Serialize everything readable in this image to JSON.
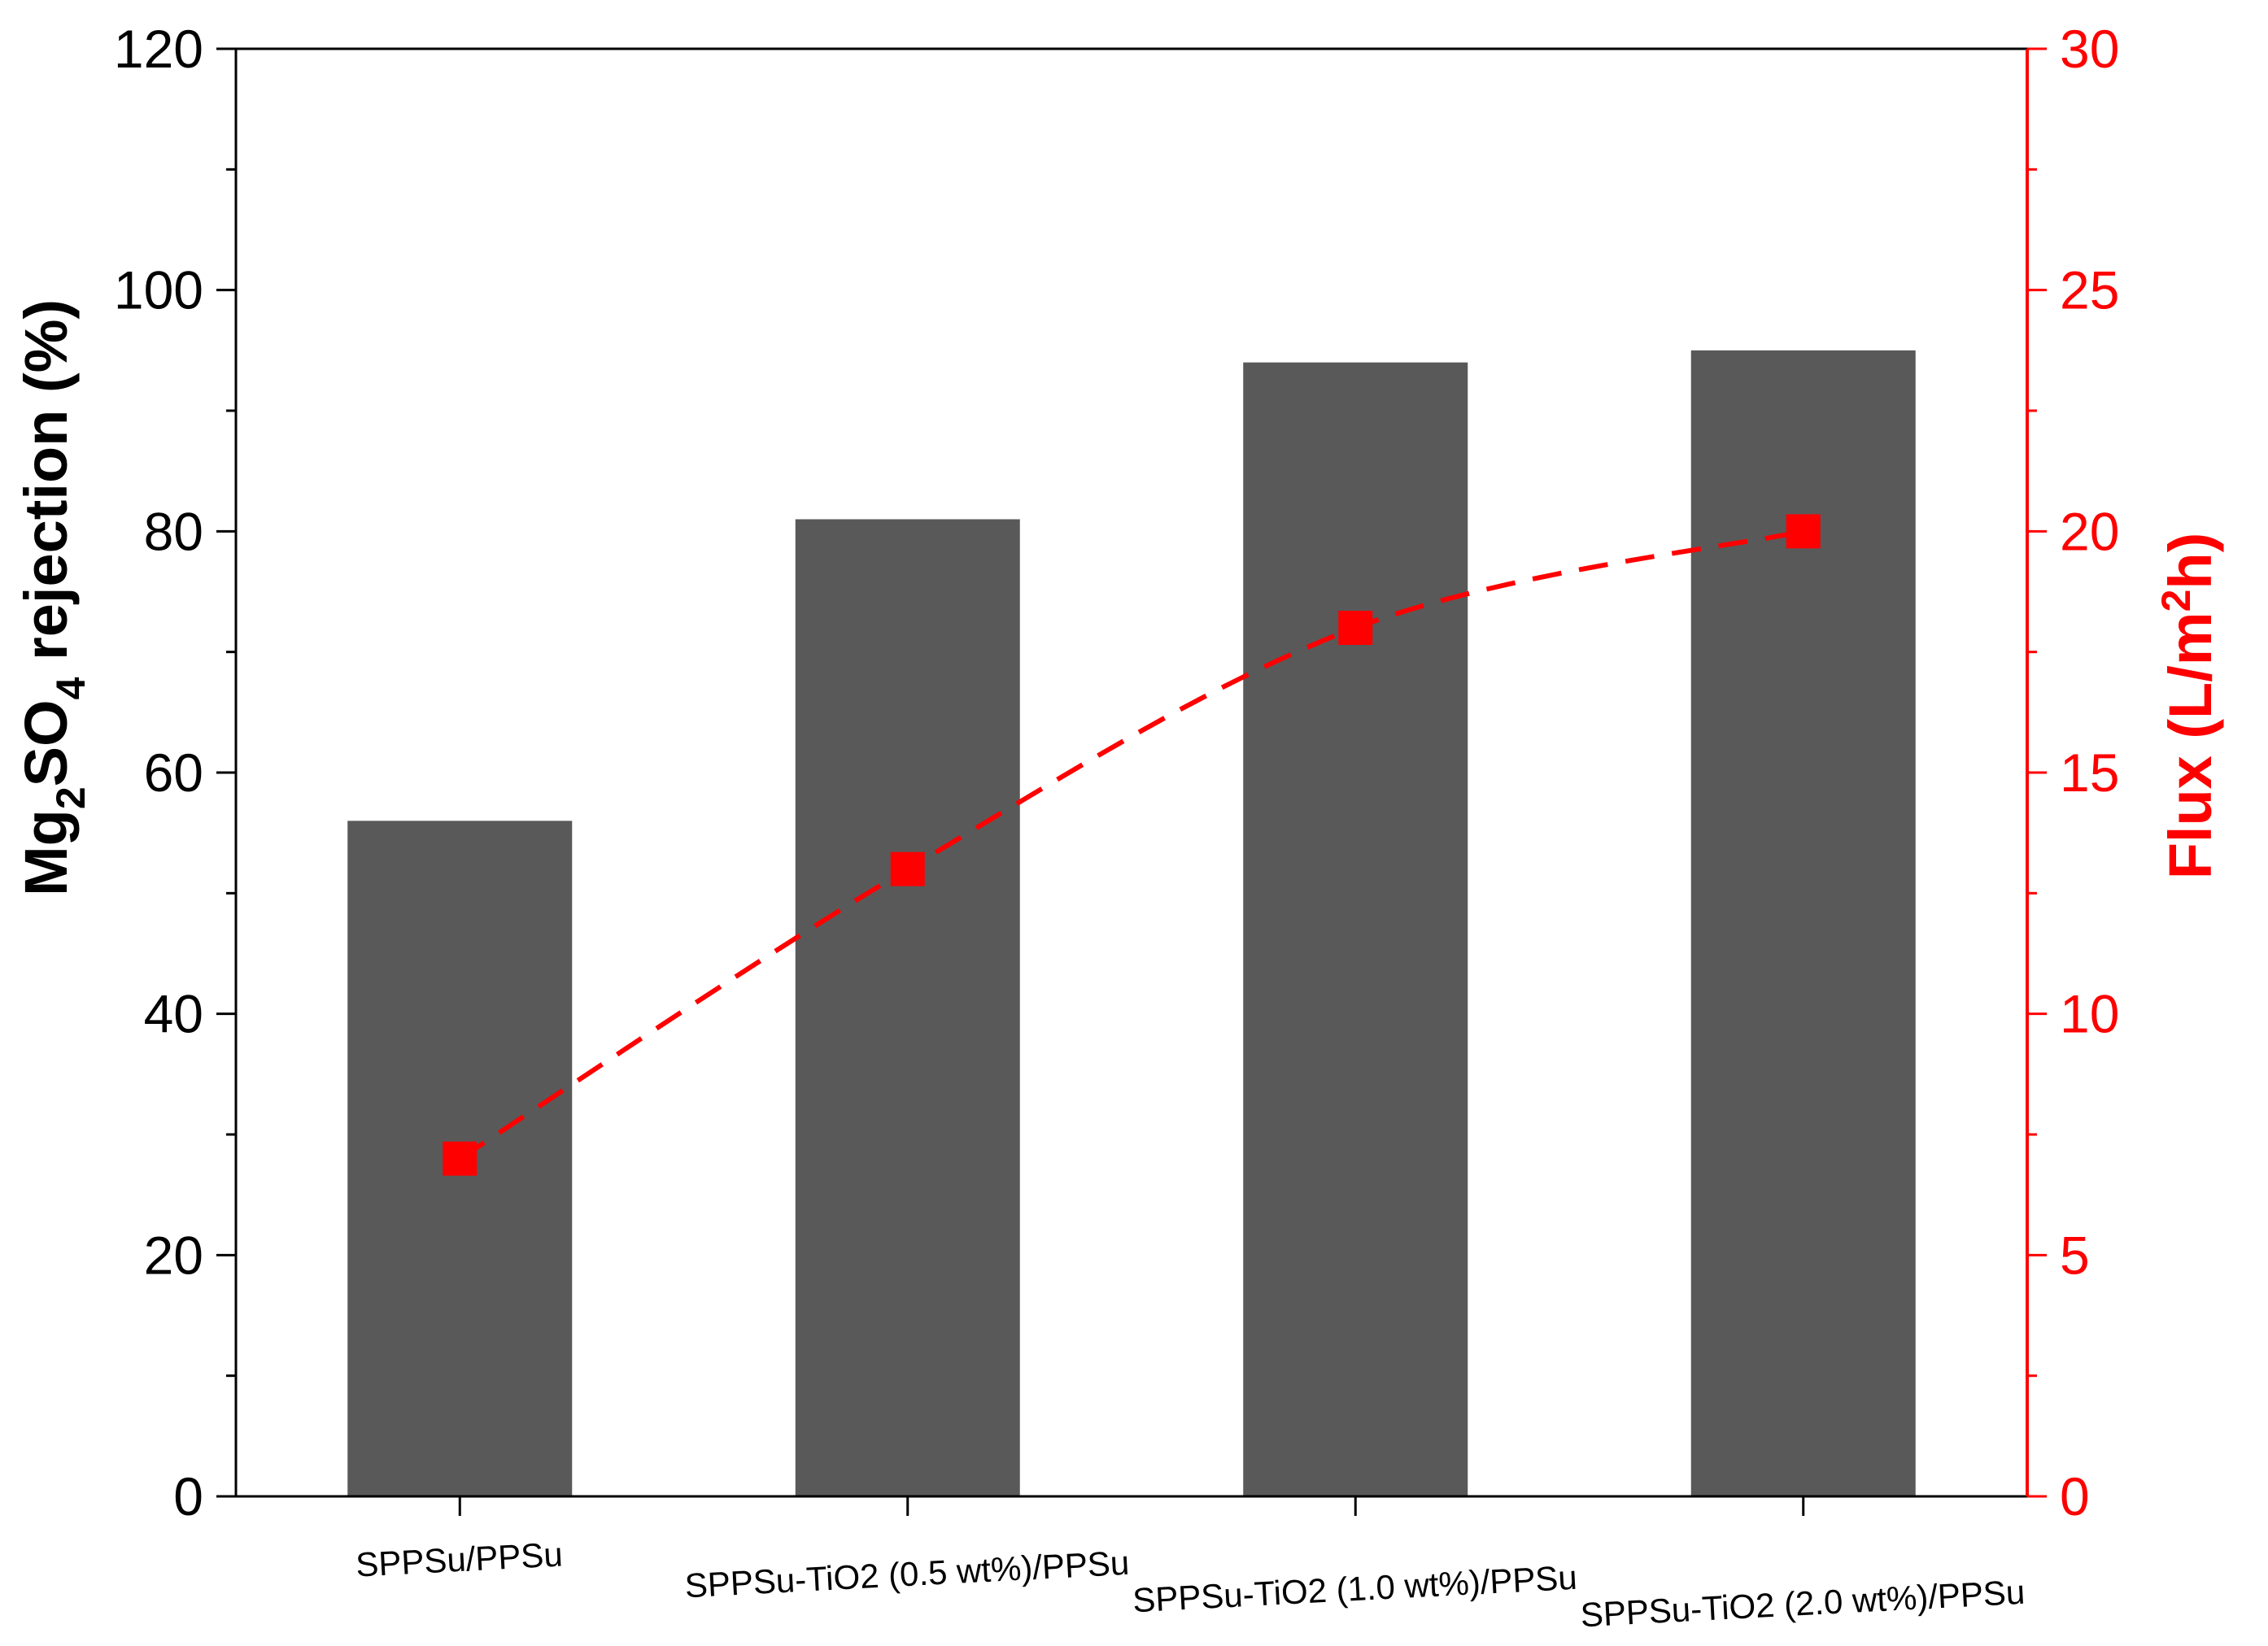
{
  "chart_data": {
    "type": "bar",
    "categories": [
      "SPPSu/PPSu",
      "SPPSu-TiO2 (0.5 wt%)/PPSu",
      "SPPSu-TiO2 (1.0 wt%)/PPSu",
      "SPPSu-TiO2 (2.0 wt%)/PPSu"
    ],
    "series": [
      {
        "values": [
          56,
          81,
          94,
          95
        ],
        "axis": "left",
        "style": "bar",
        "color": "#595959"
      },
      {
        "values": [
          7,
          13,
          18,
          20
        ],
        "axis": "right",
        "style": "dashed-line-square-markers",
        "color": "#ff0000"
      }
    ],
    "ylabel_left": {
      "pre": "Mg",
      "sub1": "2",
      "mid": "SO",
      "sub2": "4",
      "post": " rejection (%)"
    },
    "ylabel_right": {
      "pre": "Flux (L/m",
      "sup": "2",
      "post": "h)"
    },
    "ylim_left": [
      0,
      120
    ],
    "yticks_left": [
      "0",
      "20",
      "40",
      "60",
      "80",
      "100",
      "120"
    ],
    "ylim_right": [
      0,
      30
    ],
    "yticks_right": [
      "0",
      "5",
      "10",
      "15",
      "20",
      "25",
      "30"
    ],
    "grid": false,
    "legend": "none",
    "colors": {
      "bar": "#595959",
      "line": "#ff0000",
      "axis_left": "#000000",
      "axis_right": "#ff0000"
    }
  }
}
